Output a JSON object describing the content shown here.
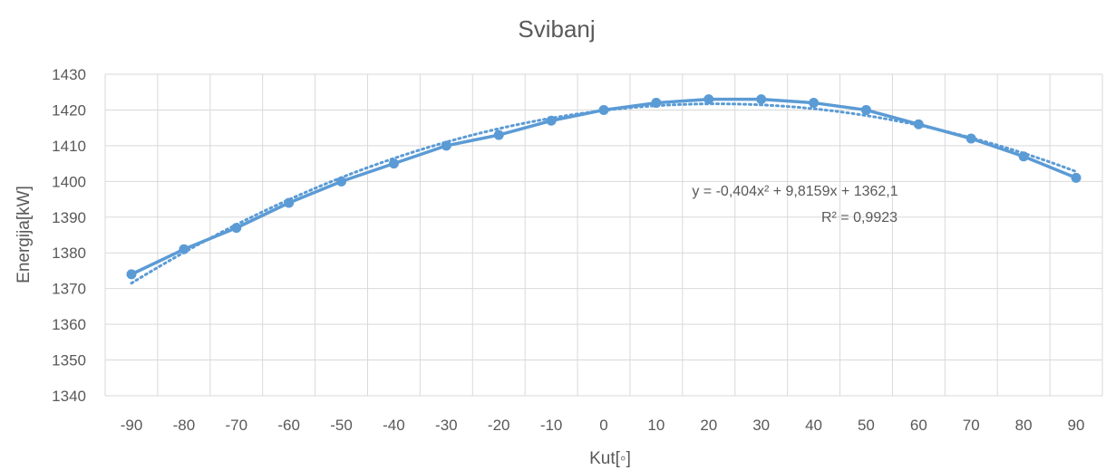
{
  "chart_data": {
    "type": "line",
    "title": "Svibanj",
    "xlabel": "Kut[◦]",
    "ylabel": "Energija[kW]",
    "x": [
      -90,
      -80,
      -70,
      -60,
      -50,
      -40,
      -30,
      -20,
      -10,
      0,
      10,
      20,
      30,
      40,
      50,
      60,
      70,
      80,
      90
    ],
    "series": [
      {
        "values": [
          1374,
          1381,
          1387,
          1394,
          1400,
          1405,
          1410,
          1413,
          1417,
          1420,
          1422,
          1423,
          1423,
          1422,
          1420,
          1416,
          1412,
          1407,
          1401
        ],
        "color": "#5b9bd5"
      }
    ],
    "trendline": {
      "type": "polynomial",
      "order": 2,
      "style": "dotted",
      "color": "#5b9bd5",
      "equation": "y = -0,404x² + 9,8159x + 1362,1",
      "r_squared": "R² = 0,9923",
      "coefficients": [
        -0.404,
        9.8159,
        1362.1
      ]
    },
    "xticks": [
      "-90",
      "-80",
      "-70",
      "-60",
      "-50",
      "-40",
      "-30",
      "-20",
      "-10",
      "0",
      "10",
      "20",
      "30",
      "40",
      "50",
      "60",
      "70",
      "80",
      "90"
    ],
    "yticks": [
      "1340",
      "1350",
      "1360",
      "1370",
      "1380",
      "1390",
      "1400",
      "1410",
      "1420",
      "1430"
    ],
    "ylim": [
      1340,
      1430
    ],
    "grid": true,
    "legend": "none"
  }
}
